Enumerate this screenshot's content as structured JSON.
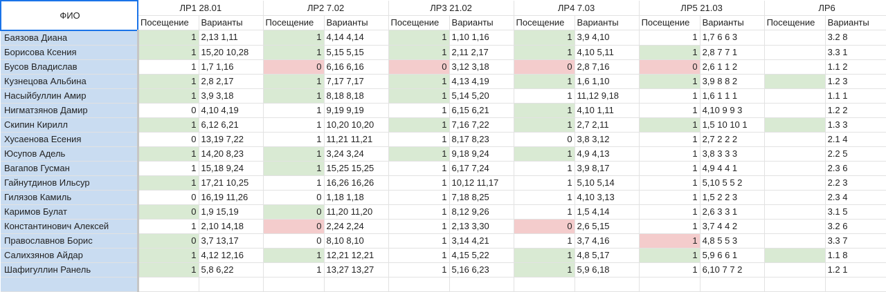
{
  "header": {
    "name_col": "ФИО",
    "labs": [
      "ЛР1 28.01",
      "ЛР2 7.02",
      "ЛР3 21.02",
      "ЛР4 7.03",
      "ЛР5 21.03",
      "ЛР6"
    ],
    "att_label": "Посещение",
    "var_label": "Варианты"
  },
  "colors": {
    "green": "#d9ead3",
    "red": "#f4cccc",
    "name_bg": "#c9dcf1",
    "selection": "#1a73e8"
  },
  "rows": [
    {
      "name": "Баязова Диана",
      "cells": [
        [
          "1",
          "2,13 1,11",
          "g"
        ],
        [
          "1",
          "4,14 4,14",
          "g"
        ],
        [
          "1",
          "1,10 1,16",
          "g"
        ],
        [
          "1",
          "3,9 4,10",
          "g"
        ],
        [
          "1",
          "1,7 6 6 3",
          ""
        ],
        [
          "",
          "3.2 8",
          ""
        ]
      ]
    },
    {
      "name": "Борисова Ксения",
      "cells": [
        [
          "1",
          "15,20 10,28",
          "g"
        ],
        [
          "1",
          "5,15 5,15",
          "g"
        ],
        [
          "1",
          "2,11 2,17",
          "g"
        ],
        [
          "1",
          "4,10 5,11",
          "g"
        ],
        [
          "1",
          "2,8 7 7 1",
          "g"
        ],
        [
          "",
          "3.3 1",
          ""
        ]
      ]
    },
    {
      "name": "Бусов Владислав",
      "cells": [
        [
          "1",
          "1,7 1,16",
          ""
        ],
        [
          "0",
          "6,16 6,16",
          "r"
        ],
        [
          "0",
          "3,12 3,18",
          "r"
        ],
        [
          "0",
          "2,8 7,16",
          "r"
        ],
        [
          "0",
          "2,6 1 1 2",
          "r"
        ],
        [
          "",
          "1.1 2",
          ""
        ]
      ]
    },
    {
      "name": "Кузнецова Альбина",
      "cells": [
        [
          "1",
          "2,8 2,17",
          "g"
        ],
        [
          "1",
          "7,17 7,17",
          "g"
        ],
        [
          "1",
          "4,13 4,19",
          "g"
        ],
        [
          "1",
          "1,6 1,10",
          "g"
        ],
        [
          "1",
          "3,9 8 8 2",
          "g"
        ],
        [
          "",
          "1.2 3",
          "g"
        ]
      ]
    },
    {
      "name": "Насыйбуллин Амир",
      "cells": [
        [
          "1",
          "3,9 3,18",
          "g"
        ],
        [
          "1",
          "8,18 8,18",
          "g"
        ],
        [
          "1",
          "5,14 5,20",
          "g"
        ],
        [
          "1",
          "11,12 9,18",
          ""
        ],
        [
          "1",
          "1,6 1 1 1",
          ""
        ],
        [
          "",
          "1.1 1",
          ""
        ]
      ]
    },
    {
      "name": "Нигматзянов Дамир",
      "cells": [
        [
          "0",
          "4,10 4,19",
          ""
        ],
        [
          "1",
          "9,19 9,19",
          ""
        ],
        [
          "1",
          "6,15 6,21",
          ""
        ],
        [
          "1",
          "4,10 1,11",
          "g"
        ],
        [
          "1",
          "4,10 9 9 3",
          ""
        ],
        [
          "",
          "1.2 2",
          ""
        ]
      ]
    },
    {
      "name": "Скипин Кирилл",
      "cells": [
        [
          "1",
          "6,12 6,21",
          "g"
        ],
        [
          "1",
          "10,20 10,20",
          ""
        ],
        [
          "1",
          "7,16 7,22",
          "g"
        ],
        [
          "1",
          "2,7 2,11",
          "g"
        ],
        [
          "1",
          "1,5 10 10 1",
          "g"
        ],
        [
          "",
          "1.3 3",
          "g"
        ]
      ]
    },
    {
      "name": "Хусаенова Есения",
      "cells": [
        [
          "0",
          "13,19 7,22",
          ""
        ],
        [
          "1",
          "11,21 11,21",
          ""
        ],
        [
          "1",
          "8,17 8,23",
          ""
        ],
        [
          "0",
          "3,8 3,12",
          ""
        ],
        [
          "1",
          "2,7 2 2 2",
          ""
        ],
        [
          "",
          "2.1 4",
          ""
        ]
      ]
    },
    {
      "name": "Юсупов Адель",
      "cells": [
        [
          "1",
          "14,20 8,23",
          "g"
        ],
        [
          "1",
          "3,24 3,24",
          "g"
        ],
        [
          "1",
          "9,18 9,24",
          "g"
        ],
        [
          "1",
          "4,9 4,13",
          "g"
        ],
        [
          "1",
          "3,8 3 3 3",
          ""
        ],
        [
          "",
          "2.2 5",
          ""
        ]
      ]
    },
    {
      "name": "Вагапов Гусман",
      "cells": [
        [
          "1",
          "15,18 9,24",
          ""
        ],
        [
          "1",
          "15,25 15,25",
          "g"
        ],
        [
          "1",
          "6,17 7,24",
          ""
        ],
        [
          "1",
          "3,9 8,17",
          ""
        ],
        [
          "1",
          "4,9 4 4 1",
          ""
        ],
        [
          "",
          "2.3 6",
          ""
        ]
      ]
    },
    {
      "name": "Гайнутдинов Ильсур",
      "cells": [
        [
          "1",
          "17,21 10,25",
          "g"
        ],
        [
          "1",
          "16,26 16,26",
          ""
        ],
        [
          "1",
          "10,12 11,17",
          ""
        ],
        [
          "1",
          "5,10 5,14",
          ""
        ],
        [
          "1",
          "5,10 5 5 2",
          ""
        ],
        [
          "",
          "2.2 3",
          ""
        ]
      ]
    },
    {
      "name": "Гилязов Камиль",
      "cells": [
        [
          "0",
          "16,19 11,26",
          ""
        ],
        [
          "0",
          "1,18 1,18",
          ""
        ],
        [
          "1",
          "7,18 8,25",
          ""
        ],
        [
          "1",
          "4,10 3,13",
          ""
        ],
        [
          "1",
          "1,5 2 2 3",
          ""
        ],
        [
          "",
          "2.3 4",
          ""
        ]
      ]
    },
    {
      "name": "Каримов Булат",
      "cells": [
        [
          "0",
          "1,9 15,19",
          "g"
        ],
        [
          "0",
          "11,20 11,20",
          "g"
        ],
        [
          "1",
          "8,12 9,26",
          ""
        ],
        [
          "1",
          "1,5 4,14",
          ""
        ],
        [
          "1",
          "2,6 3 3 1",
          ""
        ],
        [
          "",
          "3.1 5",
          ""
        ]
      ]
    },
    {
      "name": "Константинович Алексей",
      "cells": [
        [
          "1",
          "2,10 14,18",
          ""
        ],
        [
          "0",
          "2,24 2,24",
          "r"
        ],
        [
          "1",
          "2,13 3,30",
          ""
        ],
        [
          "0",
          "2,6 5,15",
          "r"
        ],
        [
          "1",
          "3,7 4 4 2",
          ""
        ],
        [
          "",
          "3.2 6",
          ""
        ]
      ]
    },
    {
      "name": "Православнов Борис",
      "cells": [
        [
          "0",
          "3,7 13,17",
          "g"
        ],
        [
          "0",
          "8,10 8,10",
          ""
        ],
        [
          "1",
          "3,14 4,21",
          ""
        ],
        [
          "1",
          "3,7 4,16",
          ""
        ],
        [
          "1",
          "4,8 5 5 3",
          "r"
        ],
        [
          "",
          "3.3 7",
          ""
        ]
      ]
    },
    {
      "name": "Салихзянов Айдар",
      "cells": [
        [
          "1",
          "4,12 12,16",
          "g"
        ],
        [
          "1",
          "12,21 12,21",
          "g"
        ],
        [
          "1",
          "4,15 5,22",
          ""
        ],
        [
          "1",
          "4,8 5,17",
          "g"
        ],
        [
          "1",
          "5,9 6 6 1",
          "g"
        ],
        [
          "",
          "1.1 8",
          "g"
        ]
      ]
    },
    {
      "name": "Шафигуллин Ранель",
      "cells": [
        [
          "1",
          "5,8 6,22",
          "g"
        ],
        [
          "1",
          "13,27 13,27",
          ""
        ],
        [
          "1",
          "5,16 6,23",
          ""
        ],
        [
          "1",
          "5,9 6,18",
          "g"
        ],
        [
          "1",
          "6,10 7 7 2",
          ""
        ],
        [
          "",
          "1.2 1",
          ""
        ]
      ]
    },
    {
      "name": "",
      "cells": [
        [
          "",
          "",
          ""
        ],
        [
          "",
          "",
          ""
        ],
        [
          "",
          "",
          ""
        ],
        [
          "",
          "",
          ""
        ],
        [
          "",
          "",
          ""
        ],
        [
          "",
          "",
          ""
        ]
      ]
    }
  ]
}
